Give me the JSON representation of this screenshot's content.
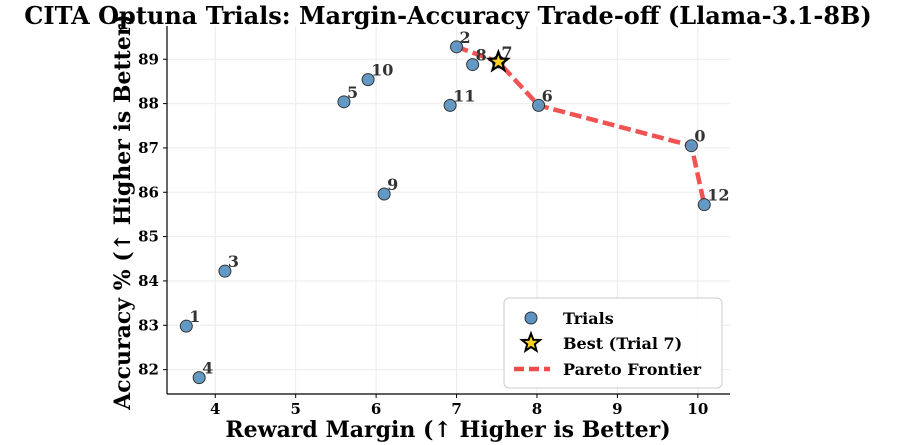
{
  "chart_data": {
    "type": "scatter",
    "title": "CITA Optuna Trials: Margin-Accuracy Trade-off (Llama-3.1-8B)",
    "xlabel": "Reward Margin (↑ Higher is Better)",
    "ylabel": "Accuracy % (↑ Higher is Better)",
    "xlim": [
      3.4,
      10.4
    ],
    "ylim": [
      81.45,
      89.75
    ],
    "xticks": [
      4,
      5,
      6,
      7,
      8,
      9,
      10
    ],
    "yticks": [
      82,
      83,
      84,
      85,
      86,
      87,
      88,
      89
    ],
    "grid": true,
    "legend_position": "bottom-right",
    "series": [
      {
        "name": "Trials",
        "color": "#5b93c2",
        "points": [
          {
            "label": "0",
            "x": 9.92,
            "y": 87.05
          },
          {
            "label": "1",
            "x": 3.64,
            "y": 82.98
          },
          {
            "label": "2",
            "x": 7.0,
            "y": 89.28
          },
          {
            "label": "3",
            "x": 4.12,
            "y": 84.22
          },
          {
            "label": "4",
            "x": 3.8,
            "y": 81.82
          },
          {
            "label": "5",
            "x": 5.6,
            "y": 88.04
          },
          {
            "label": "6",
            "x": 8.02,
            "y": 87.96
          },
          {
            "label": "7",
            "x": 7.52,
            "y": 88.94
          },
          {
            "label": "8",
            "x": 7.2,
            "y": 88.88
          },
          {
            "label": "9",
            "x": 6.1,
            "y": 85.96
          },
          {
            "label": "10",
            "x": 5.9,
            "y": 88.54
          },
          {
            "label": "11",
            "x": 6.92,
            "y": 87.96
          },
          {
            "label": "12",
            "x": 10.08,
            "y": 85.72
          }
        ]
      },
      {
        "name": "Best (Trial 7)",
        "color": "#ffd21f",
        "points": [
          {
            "label": "7",
            "x": 7.52,
            "y": 88.94
          }
        ]
      },
      {
        "name": "Pareto Frontier",
        "color": "#f04a4a",
        "points": [
          {
            "x": 7.0,
            "y": 89.28
          },
          {
            "x": 7.52,
            "y": 88.94
          },
          {
            "x": 8.02,
            "y": 87.96
          },
          {
            "x": 9.92,
            "y": 87.05
          },
          {
            "x": 10.08,
            "y": 85.72
          }
        ]
      }
    ]
  }
}
